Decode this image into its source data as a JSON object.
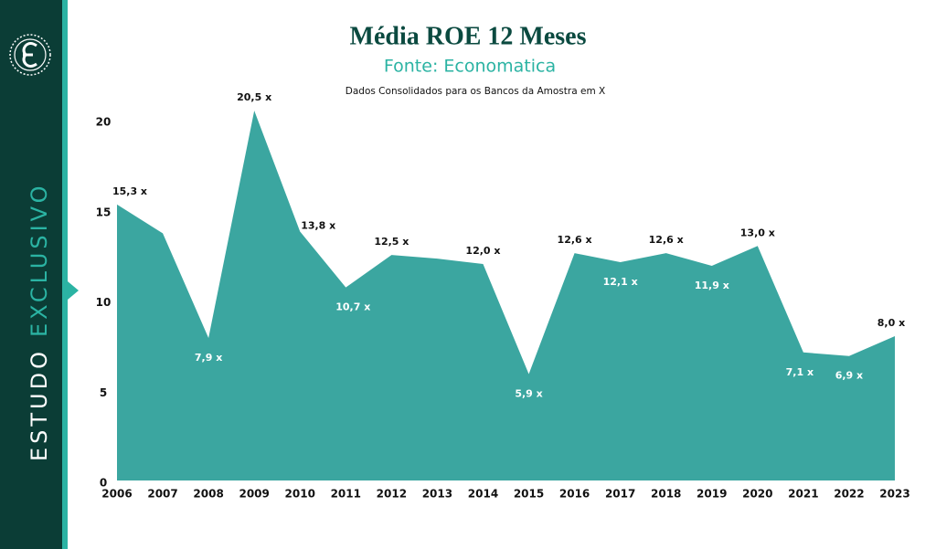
{
  "sidebar": {
    "word_1": "ESTUDO",
    "word_2": "EXCLUSIVO"
  },
  "chart_data": {
    "type": "area",
    "title": "Média ROE 12 Meses",
    "subtitle": "Fonte: Economatica",
    "note": "Dados Consolidados para os Bancos da Amostra em X",
    "categories": [
      "2006",
      "2007",
      "2008",
      "2009",
      "2010",
      "2011",
      "2012",
      "2013",
      "2014",
      "2015",
      "2016",
      "2017",
      "2018",
      "2019",
      "2020",
      "2021",
      "2022",
      "2023"
    ],
    "values": [
      15.3,
      13.7,
      7.9,
      20.5,
      13.8,
      10.7,
      12.5,
      12.3,
      12.0,
      5.9,
      12.6,
      12.1,
      12.6,
      11.9,
      13.0,
      7.1,
      6.9,
      8.0
    ],
    "value_labels": [
      "15,3 x",
      null,
      "7,9 x",
      "20,5 x",
      "13,8 x",
      "10,7 x",
      "12,5 x",
      null,
      "12,0 x",
      "5,9 x",
      "12,6 x",
      "12,1 x",
      "12,6 x",
      "11,9 x",
      "13,0 x",
      "7,1 x",
      "6,9 x",
      "8,0 x"
    ],
    "color": "#3ba6a0",
    "ylim": [
      0,
      20
    ],
    "yticks": [
      0,
      5,
      10,
      15,
      20
    ]
  }
}
